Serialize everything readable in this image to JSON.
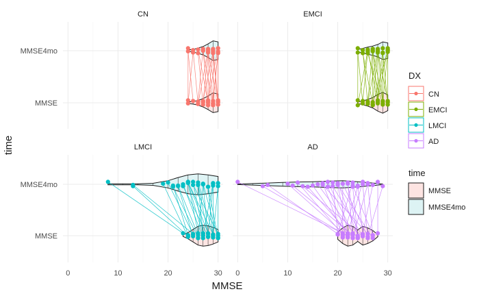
{
  "chart_data": {
    "type": "violin",
    "xlabel": "MMSE",
    "ylabel": "time",
    "xlim": [
      -1,
      31
    ],
    "x_ticks": [
      "0",
      "10",
      "20",
      "30"
    ],
    "y_categories": [
      "MMSE",
      "MMSE4mo"
    ],
    "grid": true,
    "legend_placement": "right",
    "legends": [
      {
        "title": "DX",
        "entries": [
          {
            "label": "CN",
            "color": "#F8766D"
          },
          {
            "label": "EMCI",
            "color": "#7CAE00"
          },
          {
            "label": "LMCI",
            "color": "#00BFC4"
          },
          {
            "label": "AD",
            "color": "#C77CFF"
          }
        ]
      },
      {
        "title": "time",
        "entries": [
          {
            "label": "MMSE",
            "fill": "#FDE4E2"
          },
          {
            "label": "MMSE4mo",
            "fill": "#DDF3F4"
          }
        ]
      }
    ],
    "panels": [
      {
        "title": "CN",
        "color": "#F8766D",
        "MMSE": {
          "min": 24,
          "max": 30,
          "violin_x": [
            24.0,
            25.0,
            26.0,
            27.0,
            28.0,
            29.0,
            30.0
          ],
          "violin_w": [
            0.03,
            0.05,
            0.09,
            0.16,
            0.26,
            0.38,
            0.34
          ]
        },
        "MMSE4mo": {
          "min": 24,
          "max": 30,
          "violin_x": [
            24.0,
            25.0,
            26.0,
            27.0,
            28.0,
            29.0,
            30.0
          ],
          "violin_w": [
            0.03,
            0.05,
            0.1,
            0.16,
            0.26,
            0.38,
            0.34
          ]
        },
        "pairs": [
          [
            24,
            24
          ],
          [
            24,
            25
          ],
          [
            25,
            24
          ],
          [
            26,
            25
          ],
          [
            26,
            27
          ],
          [
            27,
            26
          ],
          [
            27,
            28
          ],
          [
            28,
            27
          ],
          [
            28,
            29
          ],
          [
            28,
            30
          ],
          [
            29,
            28
          ],
          [
            29,
            30
          ],
          [
            29,
            29
          ],
          [
            30,
            29
          ],
          [
            30,
            30
          ],
          [
            30,
            28
          ],
          [
            29,
            27
          ],
          [
            28,
            26
          ],
          [
            30,
            30
          ],
          [
            29,
            30
          ],
          [
            27,
            29
          ],
          [
            26,
            28
          ],
          [
            28,
            28
          ],
          [
            30,
            29
          ]
        ]
      },
      {
        "title": "EMCI",
        "color": "#7CAE00",
        "MMSE": {
          "min": 24,
          "max": 30,
          "violin_x": [
            24.0,
            25.0,
            26.0,
            27.0,
            28.0,
            29.0,
            30.0
          ],
          "violin_w": [
            0.03,
            0.07,
            0.13,
            0.2,
            0.32,
            0.4,
            0.3
          ]
        },
        "MMSE4mo": {
          "min": 24,
          "max": 30,
          "violin_x": [
            24.0,
            25.0,
            26.0,
            27.0,
            28.0,
            29.0,
            30.0
          ],
          "violin_w": [
            0.05,
            0.09,
            0.14,
            0.18,
            0.24,
            0.34,
            0.3
          ]
        },
        "pairs": [
          [
            24,
            24
          ],
          [
            25,
            24
          ],
          [
            25,
            26
          ],
          [
            26,
            25
          ],
          [
            26,
            27
          ],
          [
            27,
            25
          ],
          [
            27,
            28
          ],
          [
            27,
            27
          ],
          [
            28,
            26
          ],
          [
            28,
            29
          ],
          [
            28,
            28
          ],
          [
            29,
            27
          ],
          [
            29,
            30
          ],
          [
            29,
            28
          ],
          [
            30,
            29
          ],
          [
            30,
            30
          ],
          [
            24,
            26
          ],
          [
            26,
            28
          ],
          [
            28,
            30
          ],
          [
            29,
            29
          ],
          [
            30,
            28
          ],
          [
            27,
            30
          ],
          [
            28,
            27
          ],
          [
            29,
            26
          ]
        ]
      },
      {
        "title": "LMCI",
        "color": "#00BFC4",
        "MMSE": {
          "min": 23,
          "max": 30,
          "violin_x": [
            23.0,
            24.0,
            25.0,
            26.0,
            27.0,
            28.0,
            29.0,
            30.0
          ],
          "violin_w": [
            0.03,
            0.12,
            0.24,
            0.36,
            0.4,
            0.38,
            0.32,
            0.24
          ]
        },
        "MMSE4mo": {
          "min": 8,
          "max": 30,
          "violin_x": [
            8.0,
            11.0,
            14.0,
            17.0,
            20.0,
            22.0,
            24.0,
            26.0,
            28.0,
            30.0
          ],
          "violin_w": [
            0.02,
            0.02,
            0.02,
            0.04,
            0.14,
            0.26,
            0.36,
            0.4,
            0.36,
            0.3
          ]
        },
        "pairs": [
          [
            23,
            8
          ],
          [
            24,
            13
          ],
          [
            25,
            13
          ],
          [
            24,
            19
          ],
          [
            25,
            20
          ],
          [
            26,
            21
          ],
          [
            26,
            22
          ],
          [
            27,
            23
          ],
          [
            27,
            24
          ],
          [
            27,
            25
          ],
          [
            28,
            23
          ],
          [
            28,
            26
          ],
          [
            28,
            27
          ],
          [
            29,
            24
          ],
          [
            29,
            28
          ],
          [
            29,
            29
          ],
          [
            30,
            27
          ],
          [
            30,
            30
          ],
          [
            26,
            24
          ],
          [
            25,
            22
          ],
          [
            27,
            26
          ],
          [
            28,
            29
          ],
          [
            29,
            26
          ],
          [
            30,
            28
          ],
          [
            24,
            21
          ],
          [
            26,
            27
          ],
          [
            27,
            29
          ],
          [
            28,
            24
          ],
          [
            29,
            30
          ],
          [
            30,
            25
          ]
        ]
      },
      {
        "title": "AD",
        "color": "#C77CFF",
        "MMSE": {
          "min": 20,
          "max": 28,
          "violin_x": [
            20.0,
            21.0,
            22.0,
            23.0,
            24.0,
            25.0,
            26.0,
            27.0,
            28.0
          ],
          "violin_w": [
            0.14,
            0.3,
            0.4,
            0.36,
            0.22,
            0.36,
            0.3,
            0.2,
            0.04
          ]
        },
        "MMSE4mo": {
          "min": 0,
          "max": 29,
          "violin_x": [
            0.0,
            3.0,
            6.0,
            9.0,
            12.0,
            15.0,
            18.0,
            21.0,
            24.0,
            27.0,
            29.0
          ],
          "violin_w": [
            0.01,
            0.03,
            0.05,
            0.07,
            0.09,
            0.1,
            0.12,
            0.14,
            0.1,
            0.05,
            0.01
          ]
        },
        "pairs": [
          [
            21,
            0
          ],
          [
            22,
            5
          ],
          [
            20,
            6
          ],
          [
            22,
            10
          ],
          [
            21,
            12
          ],
          [
            23,
            14
          ],
          [
            22,
            15
          ],
          [
            24,
            16
          ],
          [
            21,
            17
          ],
          [
            23,
            18
          ],
          [
            25,
            19
          ],
          [
            22,
            20
          ],
          [
            26,
            21
          ],
          [
            23,
            22
          ],
          [
            24,
            23
          ],
          [
            25,
            24
          ],
          [
            26,
            25
          ],
          [
            27,
            26
          ],
          [
            28,
            28
          ],
          [
            26,
            29
          ],
          [
            25,
            27
          ],
          [
            24,
            22
          ],
          [
            20,
            19
          ],
          [
            21,
            24
          ],
          [
            27,
            23
          ],
          [
            23,
            26
          ],
          [
            24,
            20
          ],
          [
            22,
            25
          ],
          [
            25,
            13
          ],
          [
            26,
            17
          ],
          [
            21,
            21
          ],
          [
            20,
            23
          ],
          [
            22,
            18
          ],
          [
            23,
            11
          ],
          [
            27,
            20
          ]
        ]
      }
    ]
  }
}
